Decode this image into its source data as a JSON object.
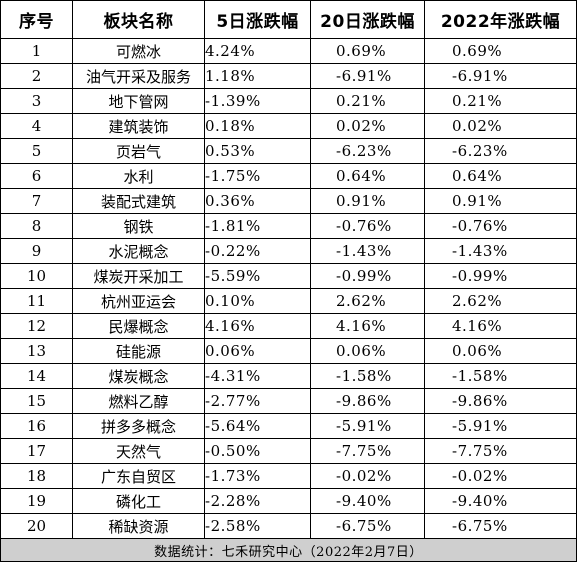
{
  "table": {
    "columns": [
      "序号",
      "板块名称",
      "5日涨跌幅",
      "20日涨跌幅",
      "2022年涨跌幅"
    ],
    "rows": [
      {
        "rank": "1",
        "name": "可燃冰",
        "d5": "4.24%",
        "d20": "0.69%",
        "ytd": "0.69%"
      },
      {
        "rank": "2",
        "name": "油气开采及服务",
        "d5": "1.18%",
        "d20": "-6.91%",
        "ytd": "-6.91%"
      },
      {
        "rank": "3",
        "name": "地下管网",
        "d5": "-1.39%",
        "d20": "0.21%",
        "ytd": "0.21%"
      },
      {
        "rank": "4",
        "name": "建筑装饰",
        "d5": "0.18%",
        "d20": "0.02%",
        "ytd": "0.02%"
      },
      {
        "rank": "5",
        "name": "页岩气",
        "d5": "0.53%",
        "d20": "-6.23%",
        "ytd": "-6.23%"
      },
      {
        "rank": "6",
        "name": "水利",
        "d5": "-1.75%",
        "d20": "0.64%",
        "ytd": "0.64%"
      },
      {
        "rank": "7",
        "name": "装配式建筑",
        "d5": "0.36%",
        "d20": "0.91%",
        "ytd": "0.91%"
      },
      {
        "rank": "8",
        "name": "钢铁",
        "d5": "-1.81%",
        "d20": "-0.76%",
        "ytd": "-0.76%"
      },
      {
        "rank": "9",
        "name": "水泥概念",
        "d5": "-0.22%",
        "d20": "-1.43%",
        "ytd": "-1.43%"
      },
      {
        "rank": "10",
        "name": "煤炭开采加工",
        "d5": "-5.59%",
        "d20": "-0.99%",
        "ytd": "-0.99%"
      },
      {
        "rank": "11",
        "name": "杭州亚运会",
        "d5": "0.10%",
        "d20": "2.62%",
        "ytd": "2.62%"
      },
      {
        "rank": "12",
        "name": "民爆概念",
        "d5": "4.16%",
        "d20": "4.16%",
        "ytd": "4.16%"
      },
      {
        "rank": "13",
        "name": "硅能源",
        "d5": "0.06%",
        "d20": "0.06%",
        "ytd": "0.06%"
      },
      {
        "rank": "14",
        "name": "煤炭概念",
        "d5": "-4.31%",
        "d20": "-1.58%",
        "ytd": "-1.58%"
      },
      {
        "rank": "15",
        "name": "燃料乙醇",
        "d5": "-2.77%",
        "d20": "-9.86%",
        "ytd": "-9.86%"
      },
      {
        "rank": "16",
        "name": "拼多多概念",
        "d5": "-5.64%",
        "d20": "-5.91%",
        "ytd": "-5.91%"
      },
      {
        "rank": "17",
        "name": "天然气",
        "d5": "-0.50%",
        "d20": "-7.75%",
        "ytd": "-7.75%"
      },
      {
        "rank": "18",
        "name": "广东自贸区",
        "d5": "-1.73%",
        "d20": "-0.02%",
        "ytd": "-0.02%"
      },
      {
        "rank": "19",
        "name": "磷化工",
        "d5": "-2.28%",
        "d20": "-9.40%",
        "ytd": "-9.40%"
      },
      {
        "rank": "20",
        "name": "稀缺资源",
        "d5": "-2.58%",
        "d20": "-6.75%",
        "ytd": "-6.75%"
      }
    ],
    "footer": "数据统计：七禾研究中心（2022年2月7日）"
  },
  "colors": {
    "border": "#000000",
    "footer_bg": "#cfcfcf",
    "background": "#ffffff"
  }
}
